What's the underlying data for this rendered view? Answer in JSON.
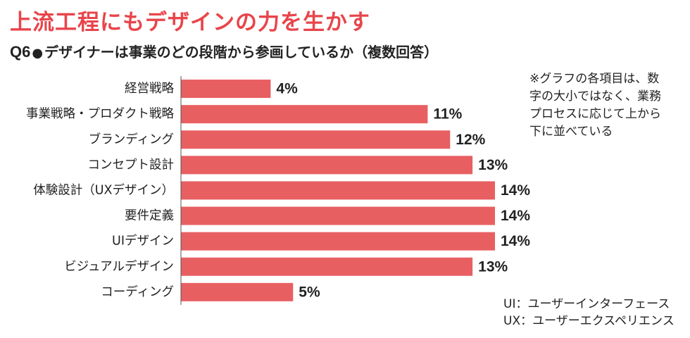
{
  "headline": "上流工程にもデザインの力を生かす",
  "question": {
    "number": "Q6",
    "bullet": "●",
    "text": "デザイナーは事業のどの段階から参画しているか（複数回答）"
  },
  "note": {
    "lines": [
      "※グラフの各項目は、数",
      "字の大小ではなく、業務",
      "プロセスに応じて上から",
      "下に並べている"
    ]
  },
  "legend": {
    "lines": [
      "UI：ユーザーインターフェース",
      "UX：ユーザーエクスペリエンス"
    ]
  },
  "colors": {
    "bar": "#e85f62",
    "headline": "#e8454b",
    "axis": "#555555"
  },
  "chart_data": {
    "type": "bar",
    "orientation": "horizontal",
    "categories": [
      "経営戦略",
      "事業戦略・プロダクト戦略",
      "ブランディング",
      "コンセプト設計",
      "体験設計（UXデザイン）",
      "要件定義",
      "UIデザイン",
      "ビジュアルデザイン",
      "コーディング"
    ],
    "values": [
      4,
      11,
      12,
      13,
      14,
      14,
      14,
      13,
      5
    ],
    "value_labels": [
      "4%",
      "11%",
      "12%",
      "13%",
      "14%",
      "14%",
      "14%",
      "13%",
      "5%"
    ],
    "unit": "%",
    "xlim": [
      0,
      14
    ],
    "grid": false,
    "legend": "none"
  }
}
